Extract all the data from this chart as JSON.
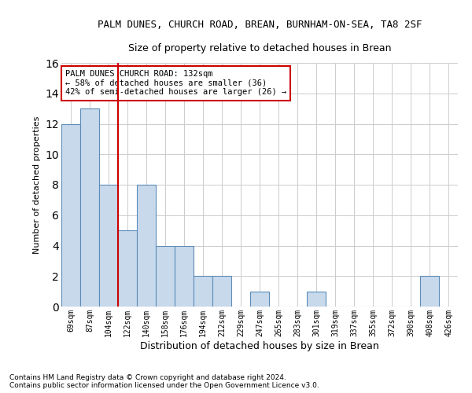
{
  "title": "PALM DUNES, CHURCH ROAD, BREAN, BURNHAM-ON-SEA, TA8 2SF",
  "subtitle": "Size of property relative to detached houses in Brean",
  "xlabel": "Distribution of detached houses by size in Brean",
  "ylabel": "Number of detached properties",
  "categories": [
    "69sqm",
    "87sqm",
    "104sqm",
    "122sqm",
    "140sqm",
    "158sqm",
    "176sqm",
    "194sqm",
    "212sqm",
    "229sqm",
    "247sqm",
    "265sqm",
    "283sqm",
    "301sqm",
    "319sqm",
    "337sqm",
    "355sqm",
    "372sqm",
    "390sqm",
    "408sqm",
    "426sqm"
  ],
  "values": [
    12,
    13,
    8,
    5,
    8,
    4,
    4,
    2,
    2,
    0,
    1,
    0,
    0,
    1,
    0,
    0,
    0,
    0,
    0,
    2,
    0
  ],
  "bar_color": "#c9d9ec",
  "bar_edge_color": "#5b8db8",
  "vline_x_index": 3,
  "vline_color": "#cc0000",
  "annotation_line1": "PALM DUNES CHURCH ROAD: 132sqm",
  "annotation_line2": "← 58% of detached houses are smaller (36)",
  "annotation_line3": "42% of semi-detached houses are larger (26) →",
  "annotation_box_color": "#ffffff",
  "annotation_box_edge": "#cc0000",
  "ylim": [
    0,
    16
  ],
  "yticks": [
    0,
    2,
    4,
    6,
    8,
    10,
    12,
    14,
    16
  ],
  "footer1": "Contains HM Land Registry data © Crown copyright and database right 2024.",
  "footer2": "Contains public sector information licensed under the Open Government Licence v3.0.",
  "background_color": "#ffffff",
  "grid_color": "#cccccc",
  "title_fontsize": 9,
  "subtitle_fontsize": 9,
  "tick_fontsize": 7,
  "ylabel_fontsize": 8,
  "xlabel_fontsize": 9,
  "annotation_fontsize": 7.5,
  "footer_fontsize": 6.5
}
